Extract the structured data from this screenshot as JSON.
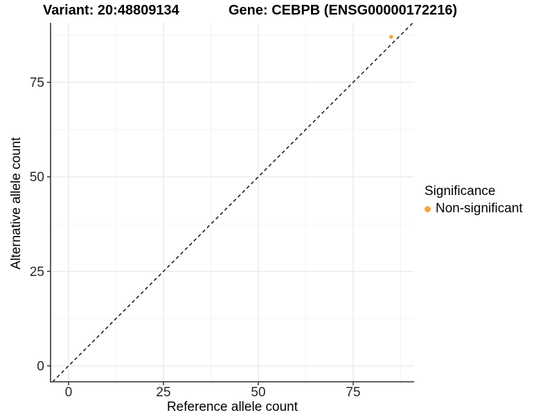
{
  "header": {
    "variant_title": "Variant: 20:48809134",
    "gene_title": "Gene: CEBPB (ENSG00000172216)"
  },
  "chart_data": {
    "type": "scatter",
    "xlabel": "Reference allele count",
    "ylabel": "Alternative allele count",
    "xlim": [
      -4.7,
      91.1
    ],
    "ylim": [
      -4.2,
      90.7
    ],
    "xticks": [
      0,
      25,
      50,
      75
    ],
    "yticks": [
      0,
      25,
      50,
      75
    ],
    "xticks_minor": [
      12.5,
      37.5,
      62.5,
      87.5
    ],
    "yticks_minor": [
      12.5,
      37.5,
      62.5,
      87.5
    ],
    "grid": "major+minor",
    "legend_position": "right",
    "series": [
      {
        "name": "Non-significant",
        "color": "#F9A240",
        "points": [
          {
            "x": 85,
            "y": 87
          }
        ]
      }
    ],
    "reference_line": {
      "kind": "identity y=x",
      "style": "dashed",
      "color": "#000000"
    }
  },
  "legend": {
    "title": "Significance",
    "items": [
      {
        "label": "Non-significant",
        "color": "#F9A240"
      }
    ]
  },
  "colors": {
    "background": "#ffffff",
    "point": "#F9A240",
    "axis_line": "#4a4a4a",
    "tick_mark": "#333333",
    "tick_label": "#262626",
    "grid_major": "#e7e7e7",
    "grid_minor": "#f3f3f3"
  }
}
